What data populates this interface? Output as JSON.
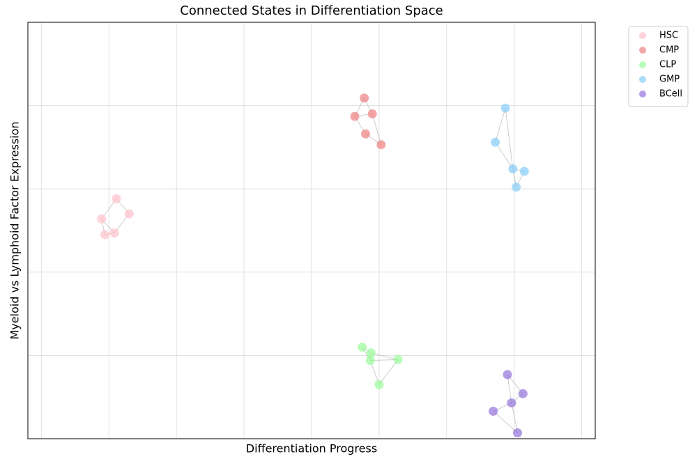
{
  "chart_data": {
    "type": "scatter",
    "title": "Connected States in Differentiation Space",
    "x_label": "Differentiation Progress",
    "y_label": "Myeloid vs Lymphoid Factor Expression",
    "xlim": [
      -0.2,
      8.2
    ],
    "ylim": [
      0,
      5
    ],
    "xticks": [
      0,
      1,
      2,
      3,
      4,
      5,
      6,
      7,
      8
    ],
    "yticks": [
      0,
      1,
      2,
      3,
      4,
      5
    ],
    "grid": true,
    "legend": "outside upper right",
    "alpha": 0.7,
    "series": [
      {
        "name": "HSC",
        "color": "#ffc0cb",
        "x": [
          1.11,
          0.89,
          1.3,
          0.94,
          1.08
        ],
        "values": [
          2.88,
          2.64,
          2.7,
          2.45,
          2.47
        ]
      },
      {
        "name": "CMP",
        "color": "#f08080",
        "x": [
          4.78,
          4.64,
          4.9,
          4.8,
          5.03
        ],
        "values": [
          4.09,
          3.87,
          3.9,
          3.66,
          3.53
        ]
      },
      {
        "name": "CLP",
        "color": "#98fb98",
        "x": [
          4.75,
          4.88,
          4.87,
          5.28,
          5.0
        ],
        "values": [
          1.1,
          1.03,
          0.94,
          0.95,
          0.65
        ]
      },
      {
        "name": "GMP",
        "color": "#87cefa",
        "x": [
          6.87,
          6.72,
          6.98,
          7.15,
          7.03
        ],
        "values": [
          3.97,
          3.56,
          3.24,
          3.21,
          3.02
        ]
      },
      {
        "name": "BCell",
        "color": "#9370db",
        "x": [
          6.9,
          7.13,
          6.96,
          6.69,
          7.05
        ],
        "values": [
          0.77,
          0.54,
          0.43,
          0.33,
          0.07
        ]
      }
    ]
  }
}
